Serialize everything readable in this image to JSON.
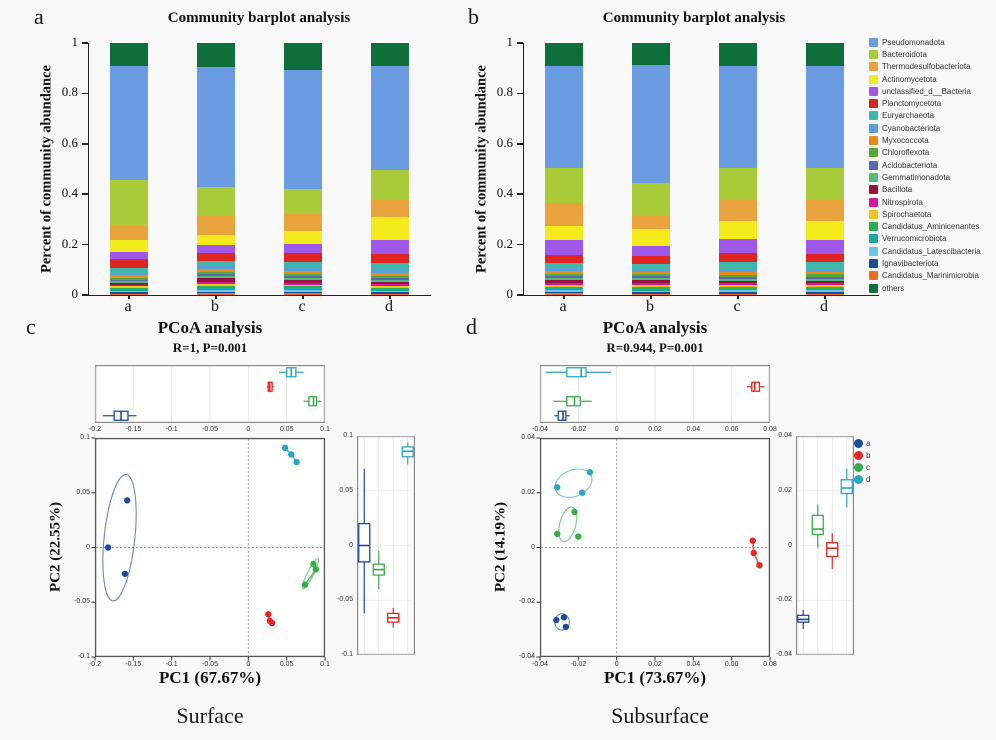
{
  "panel_letters": {
    "a": "a",
    "b": "b",
    "c": "c",
    "d": "d"
  },
  "footer": {
    "surface": "Surface",
    "subsurface": "Subsurface"
  },
  "taxa": [
    {
      "name": "Pseudomonadota",
      "color": "#6B9BE0"
    },
    {
      "name": "Bacteroidota",
      "color": "#A9CB3A"
    },
    {
      "name": "Thermodesulfobacteriota",
      "color": "#E9A33C"
    },
    {
      "name": "Actinomycetota",
      "color": "#F2EA1A"
    },
    {
      "name": "unclassified_d__Bacteria",
      "color": "#9E57E8"
    },
    {
      "name": "Planctomycetota",
      "color": "#DF2421"
    },
    {
      "name": "Euryarchaeota",
      "color": "#3FB8A9"
    },
    {
      "name": "Cyanobacteriota",
      "color": "#57A0DC"
    },
    {
      "name": "Myxococcota",
      "color": "#E98A1D"
    },
    {
      "name": "Chloroflexota",
      "color": "#53A836"
    },
    {
      "name": "Acidobacteriota",
      "color": "#5A68B4"
    },
    {
      "name": "Gemmatimonadota",
      "color": "#50BC74"
    },
    {
      "name": "Bacillota",
      "color": "#97123F"
    },
    {
      "name": "Nitrospirota",
      "color": "#D8159C"
    },
    {
      "name": "Spirochaetota",
      "color": "#EDC81B"
    },
    {
      "name": "Candidatus_Aminicenantes",
      "color": "#2CAD50"
    },
    {
      "name": "Verrucomicrobiota",
      "color": "#16ACA6"
    },
    {
      "name": "Candidatus_Latescibacteria",
      "color": "#6AC3EB"
    },
    {
      "name": "Ignavibacteriota",
      "color": "#1D4C9C"
    },
    {
      "name": "Candidatus_Marinimicrobia",
      "color": "#ED6E24"
    },
    {
      "name": "others",
      "color": "#0E6F3C"
    }
  ],
  "group_legend": [
    {
      "label": "a",
      "color": "#1A4A9E"
    },
    {
      "label": "b",
      "color": "#E8251F"
    },
    {
      "label": "c",
      "color": "#33AF47"
    },
    {
      "label": "d",
      "color": "#27A5C6"
    }
  ],
  "chart_data": [
    {
      "id": "surface_barplot",
      "type": "bar",
      "title": "Community barplot analysis",
      "ylabel": "Percent of community abundance",
      "categories": [
        "a",
        "b",
        "c",
        "d"
      ],
      "ylim": [
        0,
        1
      ],
      "yticks": [
        0,
        0.2,
        0.4,
        0.6,
        0.8,
        1
      ],
      "ytick_labels": [
        "0",
        "0.2",
        "0.4",
        "0.6",
        "0.8",
        "1"
      ],
      "bars": [
        [
          0.455,
          0.18,
          0.055,
          0.05,
          0.028,
          0.033,
          0.02,
          0.011,
          0.009,
          0.008,
          0.007,
          0.007,
          0.006,
          0.006,
          0.006,
          0.006,
          0.006,
          0.006,
          0.006,
          0.005,
          0.09
        ],
        [
          0.47,
          0.112,
          0.075,
          0.038,
          0.03,
          0.032,
          0.022,
          0.012,
          0.01,
          0.009,
          0.008,
          0.008,
          0.014,
          0.009,
          0.008,
          0.008,
          0.007,
          0.007,
          0.006,
          0.006,
          0.095
        ],
        [
          0.455,
          0.095,
          0.065,
          0.05,
          0.035,
          0.035,
          0.022,
          0.012,
          0.01,
          0.009,
          0.008,
          0.008,
          0.009,
          0.008,
          0.007,
          0.007,
          0.007,
          0.006,
          0.006,
          0.006,
          0.105
        ],
        [
          0.41,
          0.12,
          0.065,
          0.09,
          0.055,
          0.035,
          0.03,
          0.012,
          0.01,
          0.009,
          0.008,
          0.008,
          0.008,
          0.007,
          0.007,
          0.006,
          0.006,
          0.006,
          0.005,
          0.005,
          0.09
        ]
      ]
    },
    {
      "id": "subsurface_barplot",
      "type": "bar",
      "title": "Community barplot analysis",
      "ylabel": "Percent of community abundance",
      "categories": [
        "a",
        "b",
        "c",
        "d"
      ],
      "ylim": [
        0,
        1
      ],
      "yticks": [
        0,
        0.2,
        0.4,
        0.6,
        0.8,
        1
      ],
      "ytick_labels": [
        "0",
        "0.2",
        "0.4",
        "0.6",
        "0.8",
        "1"
      ],
      "bars": [
        [
          0.395,
          0.135,
          0.09,
          0.055,
          0.06,
          0.03,
          0.02,
          0.012,
          0.01,
          0.009,
          0.008,
          0.008,
          0.01,
          0.008,
          0.007,
          0.007,
          0.007,
          0.006,
          0.006,
          0.006,
          0.09
        ],
        [
          0.46,
          0.13,
          0.05,
          0.065,
          0.04,
          0.03,
          0.02,
          0.011,
          0.009,
          0.008,
          0.008,
          0.008,
          0.012,
          0.008,
          0.007,
          0.007,
          0.006,
          0.006,
          0.006,
          0.005,
          0.085
        ],
        [
          0.395,
          0.125,
          0.08,
          0.07,
          0.055,
          0.035,
          0.025,
          0.012,
          0.01,
          0.009,
          0.008,
          0.008,
          0.009,
          0.008,
          0.007,
          0.007,
          0.006,
          0.006,
          0.006,
          0.005,
          0.09
        ],
        [
          0.39,
          0.125,
          0.08,
          0.075,
          0.055,
          0.03,
          0.025,
          0.012,
          0.01,
          0.009,
          0.008,
          0.008,
          0.009,
          0.008,
          0.007,
          0.007,
          0.006,
          0.006,
          0.006,
          0.005,
          0.09
        ]
      ]
    },
    {
      "id": "surface_pcoa",
      "type": "scatter",
      "title": "PCoA analysis",
      "subtitle": "R=1, P=0.001",
      "xlabel": "PC1 (67.67%)",
      "ylabel": "PC2 (22.55%)",
      "xlim": [
        -0.2,
        0.1
      ],
      "xticks": [
        -0.2,
        -0.15,
        -0.1,
        -0.05,
        0,
        0.05,
        0.1
      ],
      "xtick_labels": [
        "-0.2",
        "-0.15",
        "-0.1",
        "-0.05",
        "0",
        "0.05",
        "0.1"
      ],
      "ylim": [
        -0.1,
        0.1
      ],
      "yticks": [
        0.1,
        0.05,
        0,
        -0.05,
        -0.1
      ],
      "ytick_labels": [
        "0.1",
        "0.05",
        "0",
        "-0.05",
        "-0.1"
      ],
      "strip_row_order": [
        "d",
        "b",
        "c",
        "a"
      ],
      "strip_col_order": [
        "a",
        "c",
        "b",
        "d"
      ],
      "groups": [
        {
          "name": "a",
          "color": "#1A4A9E",
          "points": [
            [
              -0.183,
              0.0
            ],
            [
              -0.158,
              0.043
            ],
            [
              -0.161,
              -0.024
            ]
          ],
          "ellipse": {
            "cx": -0.168,
            "cy": 0.009,
            "rx": 0.02,
            "ry": 0.058,
            "rot": 6
          },
          "connect": false,
          "pc1_box": [
            -0.19,
            -0.175,
            -0.166,
            -0.157,
            -0.146
          ],
          "pc2_box": [
            -0.062,
            -0.015,
            0.0,
            0.02,
            0.07
          ]
        },
        {
          "name": "b",
          "color": "#E8251F",
          "points": [
            [
              0.026,
              -0.061
            ],
            [
              0.028,
              -0.067
            ],
            [
              0.031,
              -0.069
            ]
          ],
          "ellipse": null,
          "connect": true,
          "pc1_box": [
            0.024,
            0.026,
            0.028,
            0.031,
            0.033
          ],
          "pc2_box": [
            -0.075,
            -0.07,
            -0.066,
            -0.062,
            -0.057
          ]
        },
        {
          "name": "c",
          "color": "#33AF47",
          "points": [
            [
              0.085,
              -0.015
            ],
            [
              0.088,
              -0.02
            ],
            [
              0.074,
              -0.034
            ]
          ],
          "ellipse": {
            "cx": 0.081,
            "cy": -0.024,
            "rx": 0.004,
            "ry": 0.0155,
            "rot": 27
          },
          "connect": true,
          "pc1_box": [
            0.072,
            0.079,
            0.085,
            0.089,
            0.095
          ],
          "pc2_box": [
            -0.04,
            -0.027,
            -0.022,
            -0.017,
            -0.005
          ]
        },
        {
          "name": "d",
          "color": "#27A5C6",
          "points": [
            [
              0.048,
              0.091
            ],
            [
              0.056,
              0.085
            ],
            [
              0.063,
              0.078
            ]
          ],
          "ellipse": null,
          "connect": true,
          "pc1_box": [
            0.04,
            0.05,
            0.056,
            0.062,
            0.072
          ],
          "pc2_box": [
            0.074,
            0.081,
            0.086,
            0.09,
            0.094
          ]
        }
      ]
    },
    {
      "id": "subsurface_pcoa",
      "type": "scatter",
      "title": "PCoA analysis",
      "subtitle": "R=0.944, P=0.001",
      "xlabel": "PC1 (73.67%)",
      "ylabel": "PC2 (14.19%)",
      "xlim": [
        -0.04,
        0.08
      ],
      "xticks": [
        -0.04,
        -0.02,
        0,
        0.02,
        0.04,
        0.06,
        0.08
      ],
      "xtick_labels": [
        "-0.04",
        "-0.02",
        "0",
        "0.02",
        "0.04",
        "0.06",
        "0.08"
      ],
      "ylim": [
        -0.04,
        0.04
      ],
      "yticks": [
        0.04,
        0.02,
        0,
        -0.02,
        -0.04
      ],
      "ytick_labels": [
        "0.04",
        "0.02",
        "0",
        "-0.02",
        "-0.04"
      ],
      "strip_row_order": [
        "d",
        "b",
        "c",
        "a"
      ],
      "strip_col_order": [
        "a",
        "c",
        "b",
        "d"
      ],
      "groups": [
        {
          "name": "a",
          "color": "#1A4A9E",
          "points": [
            [
              -0.0315,
              -0.0265
            ],
            [
              -0.0275,
              -0.0255
            ],
            [
              -0.0265,
              -0.029
            ]
          ],
          "ellipse": {
            "cx": -0.0285,
            "cy": -0.0272,
            "rx": 0.0038,
            "ry": 0.003,
            "rot": 0
          },
          "connect": false,
          "pc1_box": [
            -0.0325,
            -0.0305,
            -0.028,
            -0.0265,
            -0.0245
          ],
          "pc2_box": [
            -0.0305,
            -0.028,
            -0.027,
            -0.0255,
            -0.0235
          ]
        },
        {
          "name": "b",
          "color": "#E8251F",
          "points": [
            [
              0.071,
              0.0025
            ],
            [
              0.0715,
              -0.002
            ],
            [
              0.0745,
              -0.0065
            ]
          ],
          "ellipse": null,
          "connect": true,
          "pc1_box": [
            0.068,
            0.0705,
            0.072,
            0.0745,
            0.077
          ],
          "pc2_box": [
            -0.0085,
            -0.004,
            -0.001,
            0.001,
            0.0045
          ]
        },
        {
          "name": "c",
          "color": "#33AF47",
          "points": [
            [
              -0.022,
              0.013
            ],
            [
              -0.031,
              0.005
            ],
            [
              -0.02,
              0.004
            ]
          ],
          "ellipse": {
            "cx": -0.0255,
            "cy": 0.0085,
            "rx": 0.0042,
            "ry": 0.0065,
            "rot": 15
          },
          "connect": false,
          "pc1_box": [
            -0.033,
            -0.026,
            -0.022,
            -0.019,
            -0.013
          ],
          "pc2_box": [
            -0.001,
            0.004,
            0.006,
            0.011,
            0.015
          ]
        },
        {
          "name": "d",
          "color": "#27A5C6",
          "points": [
            [
              -0.031,
              0.022
            ],
            [
              -0.014,
              0.0275
            ],
            [
              -0.018,
              0.02
            ]
          ],
          "ellipse": {
            "cx": -0.0225,
            "cy": 0.0235,
            "rx": 0.01,
            "ry": 0.0048,
            "rot": -22
          },
          "connect": false,
          "pc1_box": [
            -0.037,
            -0.026,
            -0.0185,
            -0.016,
            -0.003
          ],
          "pc2_box": [
            0.014,
            0.019,
            0.021,
            0.024,
            0.028
          ]
        }
      ]
    }
  ]
}
